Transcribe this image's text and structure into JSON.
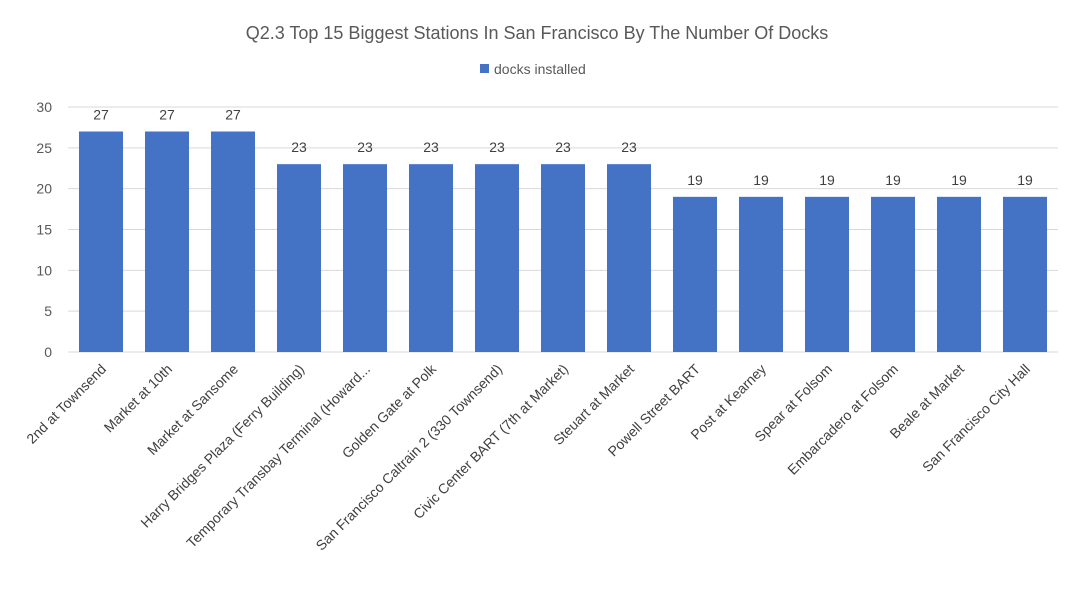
{
  "chart_data": {
    "type": "bar",
    "title": "Q2.3 Top 15 Biggest Stations In San Francisco By The Number Of Docks",
    "xlabel": "",
    "ylabel": "",
    "ylim": [
      0,
      30
    ],
    "yticks": [
      0,
      5,
      10,
      15,
      20,
      25,
      30
    ],
    "grid": true,
    "legend_position": "top",
    "categories": [
      "2nd at Townsend",
      "Market at 10th",
      "Market at Sansome",
      "Harry Bridges Plaza (Ferry Building)",
      "Temporary Transbay Terminal (Howard...",
      "Golden Gate at Polk",
      "San Francisco Caltrain 2 (330 Townsend)",
      "Civic Center BART (7th at Market)",
      "Steuart at Market",
      "Powell Street BART",
      "Post at Kearney",
      "Spear at Folsom",
      "Embarcadero at Folsom",
      "Beale at Market",
      "San Francisco City Hall"
    ],
    "series": [
      {
        "name": "docks installed",
        "color": "#4472c4",
        "values": [
          27,
          27,
          27,
          23,
          23,
          23,
          23,
          23,
          23,
          19,
          19,
          19,
          19,
          19,
          19
        ]
      }
    ]
  }
}
